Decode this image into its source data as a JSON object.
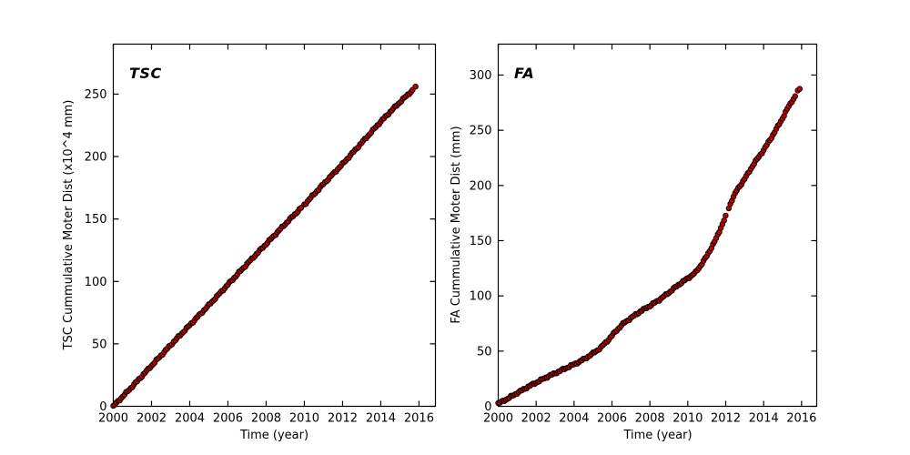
{
  "figure": {
    "background_color": "#ffffff",
    "axes_color": "#000000"
  },
  "chart_data": [
    {
      "type": "scatter",
      "title": "TSC",
      "xlabel": "Time (year)",
      "ylabel": "TSC Cummulative Moter Dist (x10^4 mm)",
      "xlim": [
        2000,
        2016.86
      ],
      "ylim": [
        0,
        290
      ],
      "xticks": [
        2000,
        2002,
        2004,
        2006,
        2008,
        2010,
        2012,
        2014,
        2016
      ],
      "yticks": [
        0,
        50,
        100,
        150,
        200,
        250
      ],
      "grid": false,
      "legend": null,
      "marker_color": "#bf0000",
      "marker_edge_color": "#000000",
      "sample_interval_years": 0.0833,
      "wiggle_amplitude": 0.8,
      "gap_years": [
        2009.95
      ],
      "anchors": [
        [
          2000.0,
          0
        ],
        [
          2001,
          16
        ],
        [
          2002,
          32.5
        ],
        [
          2003,
          49
        ],
        [
          2004,
          65
        ],
        [
          2005,
          81
        ],
        [
          2006,
          97.5
        ],
        [
          2007,
          114
        ],
        [
          2008,
          130
        ],
        [
          2009,
          146
        ],
        [
          2010,
          161.5
        ],
        [
          2011,
          178
        ],
        [
          2012,
          194
        ],
        [
          2013,
          211
        ],
        [
          2014,
          228
        ],
        [
          2014.7,
          239
        ],
        [
          2015.2,
          246.5
        ],
        [
          2015.55,
          251.5
        ],
        [
          2015.73,
          254
        ]
      ],
      "end_points": [
        [
          2015.82,
          256
        ]
      ]
    },
    {
      "type": "scatter",
      "title": "FA",
      "xlabel": "Time (year)",
      "ylabel": "FA Cummulative Moter Dist (mm)",
      "xlim": [
        2000,
        2016.8
      ],
      "ylim": [
        0,
        328
      ],
      "xticks": [
        2000,
        2002,
        2004,
        2006,
        2008,
        2010,
        2012,
        2014,
        2016
      ],
      "yticks": [
        0,
        50,
        100,
        150,
        200,
        250,
        300
      ],
      "grid": false,
      "legend": null,
      "marker_color": "#bf0000",
      "marker_edge_color": "#000000",
      "sample_interval_years": 0.0833,
      "wiggle_amplitude": 0.9,
      "gap_years": [
        2012.08
      ],
      "anchors": [
        [
          2000,
          2.5
        ],
        [
          2000.5,
          7
        ],
        [
          2001,
          12
        ],
        [
          2001.5,
          17
        ],
        [
          2002,
          21.5
        ],
        [
          2002.5,
          26
        ],
        [
          2003,
          30
        ],
        [
          2003.5,
          34
        ],
        [
          2004,
          38
        ],
        [
          2004.35,
          41
        ],
        [
          2004.7,
          44.5
        ],
        [
          2005,
          48
        ],
        [
          2005.4,
          53
        ],
        [
          2005.8,
          60
        ],
        [
          2006.2,
          68
        ],
        [
          2006.6,
          75
        ],
        [
          2007,
          80
        ],
        [
          2007.5,
          86
        ],
        [
          2008,
          91
        ],
        [
          2008.5,
          96.5
        ],
        [
          2009,
          103
        ],
        [
          2009.5,
          110
        ],
        [
          2010,
          116
        ],
        [
          2010.4,
          121
        ],
        [
          2010.7,
          128
        ],
        [
          2011,
          136
        ],
        [
          2011.5,
          152
        ],
        [
          2012,
          172
        ],
        [
          2012.3,
          186
        ],
        [
          2012.6,
          196
        ],
        [
          2013,
          206
        ],
        [
          2013.5,
          220
        ],
        [
          2014,
          232
        ],
        [
          2014.5,
          246
        ],
        [
          2015,
          261
        ],
        [
          2015.3,
          271
        ],
        [
          2015.55,
          278
        ],
        [
          2015.73,
          282
        ]
      ],
      "end_points": [
        [
          2015.8,
          286
        ],
        [
          2015.9,
          287.5
        ]
      ]
    }
  ]
}
